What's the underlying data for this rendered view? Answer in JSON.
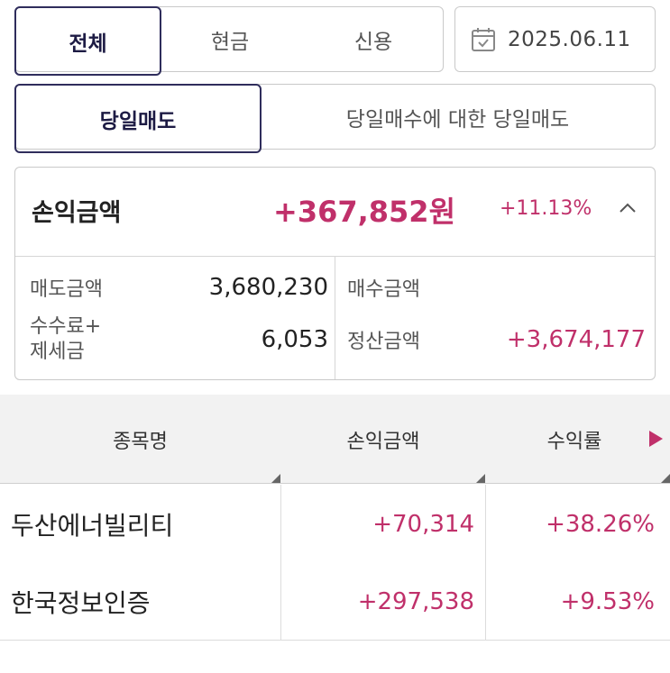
{
  "account_tabs": {
    "items": [
      "전체",
      "현금",
      "신용"
    ],
    "selected": "전체"
  },
  "date_picker": {
    "value": "2025.06.11",
    "icon": "calendar-icon"
  },
  "trade_tabs": {
    "items": [
      "당일매도",
      "당일매수에 대한 당일매도"
    ],
    "selected": "당일매도"
  },
  "summary": {
    "title": "손익금액",
    "amount": "+367,852원",
    "rate": "+11.13%",
    "toggle_icon": "chevron-up-icon",
    "sell_amount_label": "매도금액",
    "sell_amount": "3,680,230",
    "buy_amount_label": "매수금액",
    "buy_amount": "",
    "fee_tax_label_line1": "수수료+",
    "fee_tax_label_line2": "제세금",
    "fee_tax": "6,053",
    "settlement_label": "정산금액",
    "settlement": "+3,674,177"
  },
  "table": {
    "columns": [
      "종목명",
      "손익금액",
      "수익률"
    ],
    "rows": [
      {
        "name": "두산에너빌리티",
        "profit": "+70,314",
        "rate": "+38.26%"
      },
      {
        "name": "한국정보인증",
        "profit": "+297,538",
        "rate": "+9.53%"
      }
    ]
  },
  "colors": {
    "accent": "#c0306a",
    "selected_border": "#2f2d5c"
  }
}
